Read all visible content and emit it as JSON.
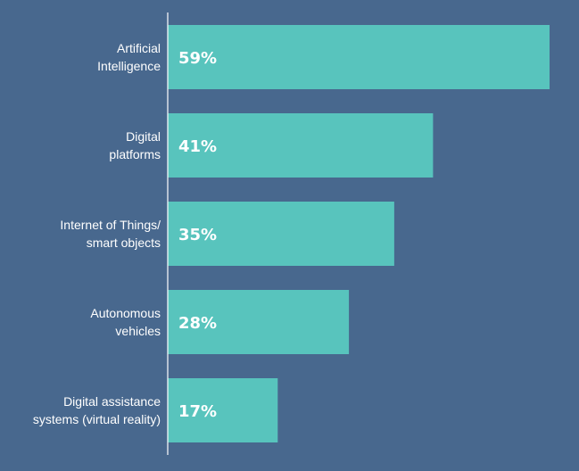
{
  "colors": {
    "background": "#48688e",
    "bar": "#58c4bd",
    "axis": "#ffffff",
    "text": "#ffffff"
  },
  "chart_data": {
    "type": "bar",
    "orientation": "horizontal",
    "categories": [
      [
        "Artificial",
        "Intelligence"
      ],
      [
        "Digital",
        "platforms"
      ],
      [
        "Internet of Things/",
        "smart objects"
      ],
      [
        "Autonomous",
        "vehicles"
      ],
      [
        "Digital assistance",
        "systems (virtual reality)"
      ]
    ],
    "values": [
      59,
      41,
      35,
      28,
      17
    ],
    "value_labels": [
      "59%",
      "41%",
      "35%",
      "28%",
      "17%"
    ],
    "unit": "%",
    "xlim": [
      0,
      59
    ],
    "grid": false,
    "legend": "none"
  }
}
